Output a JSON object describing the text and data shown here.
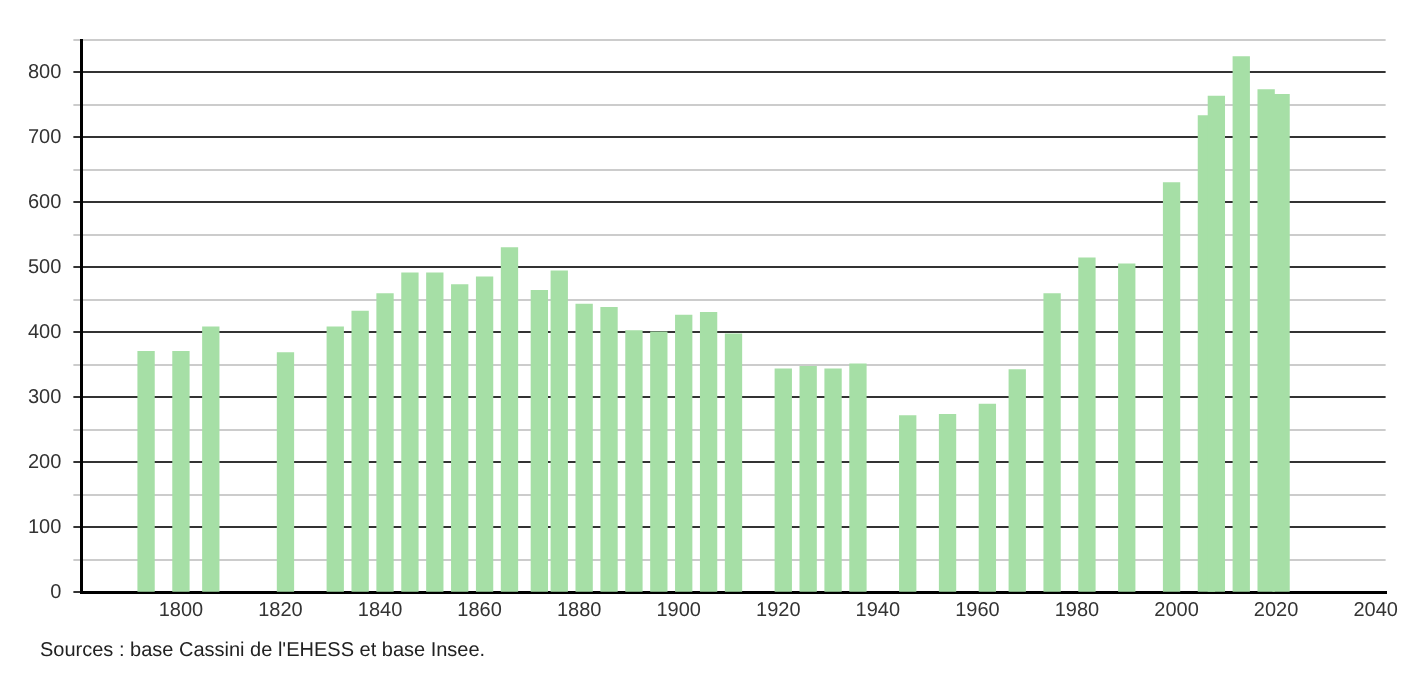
{
  "chart_data": {
    "type": "bar",
    "x": [
      1793,
      1800,
      1806,
      1821,
      1831,
      1836,
      1841,
      1846,
      1851,
      1856,
      1861,
      1866,
      1872,
      1876,
      1881,
      1886,
      1891,
      1896,
      1901,
      1906,
      1911,
      1921,
      1926,
      1931,
      1936,
      1946,
      1954,
      1962,
      1968,
      1975,
      1982,
      1990,
      1999,
      2006,
      2008,
      2013,
      2018,
      2021
    ],
    "values": [
      370,
      370,
      408,
      368,
      408,
      432,
      459,
      491,
      491,
      473,
      485,
      530,
      464,
      494,
      443,
      438,
      402,
      400,
      426,
      430,
      397,
      343,
      347,
      343,
      351,
      271,
      273,
      289,
      342,
      459,
      514,
      505,
      630,
      733,
      763,
      824,
      773,
      766
    ],
    "color": "#a6dfa6",
    "xlim": [
      1780,
      2042
    ],
    "xticks": [
      1800,
      1820,
      1840,
      1860,
      1880,
      1900,
      1920,
      1940,
      1960,
      1980,
      2000,
      2020,
      2040
    ],
    "ylim": [
      0,
      850
    ],
    "yticks": [
      0,
      {
        "value": 50,
        "label": null
      },
      100,
      {
        "value": 150,
        "label": null
      },
      200,
      {
        "value": 250,
        "label": null
      },
      300,
      {
        "value": 350,
        "label": null
      },
      400,
      {
        "value": 450,
        "label": null
      },
      500,
      {
        "value": 550,
        "label": null
      },
      600,
      {
        "value": 650,
        "label": null
      },
      700,
      {
        "value": 750,
        "label": null
      },
      800,
      {
        "value": 850,
        "label": null
      }
    ],
    "grid": "y",
    "legend": false,
    "annotations": [
      "Sources : base Cassini de l'EHESS et base Insee."
    ]
  }
}
